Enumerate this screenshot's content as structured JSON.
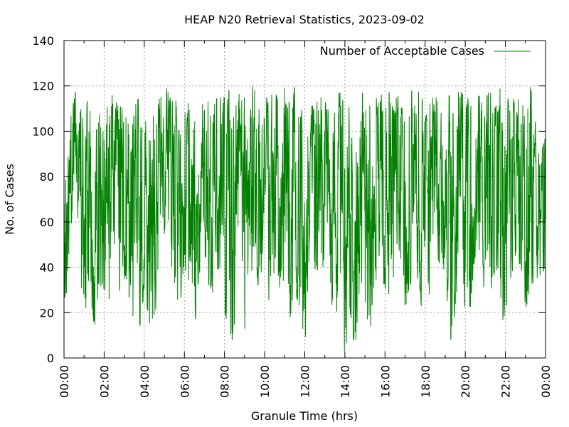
{
  "chart_data": {
    "type": "line",
    "title": "HEAP N20 Retrieval Statistics, 2023-09-02",
    "xlabel": "Granule Time (hrs)",
    "ylabel": "No. of Cases",
    "xlim": [
      "00:00",
      "24:00"
    ],
    "ylim": [
      0,
      140
    ],
    "x_ticks": [
      "00:00",
      "02:00",
      "04:00",
      "06:00",
      "08:00",
      "10:00",
      "12:00",
      "14:00",
      "16:00",
      "18:00",
      "20:00",
      "22:00",
      "00:00"
    ],
    "y_ticks": [
      "0",
      "20",
      "40",
      "60",
      "80",
      "100",
      "120",
      "140"
    ],
    "grid": true,
    "legend_position": "top-right",
    "series": [
      {
        "name": "Number of Acceptable Cases",
        "color": "#008000",
        "x_unit": "hours since 00:00",
        "x": [
          0.0,
          0.25,
          0.5,
          0.75,
          1.0,
          1.25,
          1.5,
          1.75,
          2.0,
          2.25,
          2.5,
          2.75,
          3.0,
          3.25,
          3.5,
          3.75,
          4.0,
          4.25,
          4.5,
          4.75,
          5.0,
          5.25,
          5.5,
          5.75,
          6.0,
          6.25,
          6.5,
          6.75,
          7.0,
          7.25,
          7.5,
          7.75,
          8.0,
          8.25,
          8.5,
          8.75,
          9.0,
          9.25,
          9.5,
          9.75,
          10.0,
          10.25,
          10.5,
          10.75,
          11.0,
          11.25,
          11.5,
          11.75,
          12.0,
          12.25,
          12.5,
          12.75,
          13.0,
          13.25,
          13.5,
          13.75,
          14.0,
          14.25,
          14.5,
          14.75,
          15.0,
          15.25,
          15.5,
          15.75,
          16.0,
          16.25,
          16.5,
          16.75,
          17.0,
          17.25,
          17.5,
          17.75,
          18.0,
          18.25,
          18.5,
          18.75,
          19.0,
          19.25,
          19.5,
          19.75,
          20.0,
          20.25,
          20.5,
          20.75,
          21.0,
          21.25,
          21.5,
          21.75,
          22.0,
          22.25,
          22.5,
          22.75,
          23.0,
          23.25,
          23.5,
          23.75,
          24.0
        ],
        "min": [
          16,
          40,
          80,
          20,
          12,
          35,
          10,
          30,
          30,
          5,
          50,
          20,
          35,
          25,
          15,
          10,
          30,
          15,
          12,
          40,
          50,
          45,
          30,
          20,
          40,
          30,
          5,
          35,
          40,
          30,
          25,
          40,
          20,
          10,
          2,
          30,
          8,
          35,
          40,
          20,
          60,
          15,
          40,
          30,
          35,
          15,
          30,
          20,
          1,
          50,
          30,
          40,
          40,
          20,
          25,
          10,
          1,
          20,
          2,
          30,
          25,
          8,
          30,
          40,
          30,
          15,
          40,
          45,
          20,
          30,
          40,
          25,
          15,
          30,
          45,
          40,
          35,
          5,
          20,
          40,
          15,
          20,
          45,
          40,
          25,
          20,
          40,
          10,
          20,
          30,
          45,
          40,
          20,
          20,
          40,
          20,
          45
        ],
        "max": [
          80,
          110,
          120,
          110,
          115,
          120,
          100,
          120,
          120,
          110,
          120,
          110,
          120,
          100,
          110,
          120,
          115,
          120,
          110,
          115,
          120,
          118,
          120,
          100,
          120,
          110,
          115,
          120,
          110,
          120,
          115,
          120,
          115,
          120,
          110,
          120,
          115,
          120,
          120,
          110,
          120,
          115,
          120,
          110,
          120,
          115,
          120,
          110,
          115,
          120,
          110,
          120,
          115,
          120,
          110,
          120,
          110,
          120,
          110,
          120,
          115,
          120,
          115,
          120,
          110,
          120,
          115,
          120,
          110,
          120,
          115,
          120,
          110,
          120,
          115,
          120,
          110,
          120,
          115,
          120,
          115,
          120,
          110,
          120,
          115,
          120,
          110,
          120,
          115,
          120,
          115,
          120,
          110,
          120,
          110,
          90,
          100
        ]
      }
    ]
  }
}
